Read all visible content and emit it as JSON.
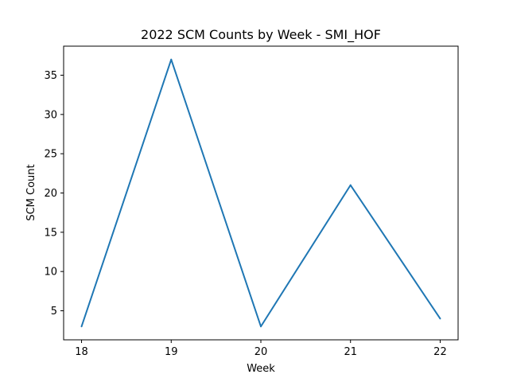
{
  "chart_data": {
    "type": "line",
    "title": "2022 SCM Counts by Week - SMI_HOF",
    "xlabel": "Week",
    "ylabel": "SCM Count",
    "x": [
      18,
      19,
      20,
      21,
      22
    ],
    "series": [
      {
        "values": [
          3,
          37,
          3,
          21,
          4
        ],
        "color": "#1f77b4"
      }
    ],
    "xticks": [
      18,
      19,
      20,
      21,
      22
    ],
    "yticks": [
      5,
      10,
      15,
      20,
      25,
      30,
      35
    ],
    "xlim": [
      17.8,
      22.2
    ],
    "ylim": [
      1.3,
      38.7
    ],
    "grid": false,
    "legend": false
  }
}
